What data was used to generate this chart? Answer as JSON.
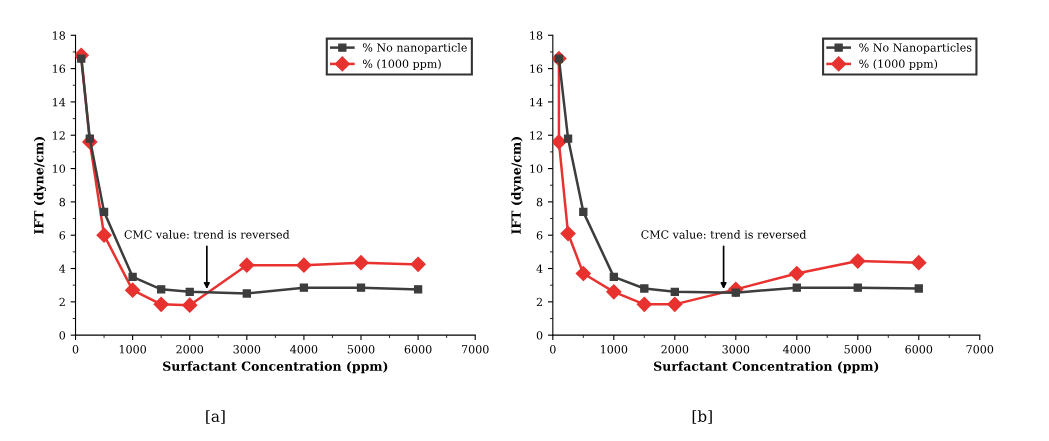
{
  "chart_data": [
    {
      "type": "line",
      "xlabel": "Surfactant Concentration (ppm)",
      "ylabel": "IFT (dyne/cm)",
      "xlim": [
        0,
        7000
      ],
      "xticks": [
        0,
        1000,
        2000,
        3000,
        4000,
        5000,
        6000,
        7000
      ],
      "ylim": [
        0,
        18
      ],
      "yticks": [
        0,
        2,
        4,
        6,
        8,
        10,
        12,
        14,
        16,
        18
      ],
      "legend": "top right",
      "series": [
        {
          "name": "% No nanoparticle",
          "color": "#3d3d3d",
          "marker": "square",
          "x": [
            100,
            250,
            500,
            1000,
            1500,
            2000,
            3000,
            4000,
            5000,
            6000
          ],
          "values": [
            16.6,
            11.8,
            7.4,
            3.5,
            2.75,
            2.6,
            2.5,
            2.85,
            2.85,
            2.75
          ]
        },
        {
          "name": "% (1000 ppm)",
          "color": "#e8322f",
          "marker": "diamond",
          "x": [
            100,
            250,
            500,
            1000,
            1500,
            2000,
            3000,
            4000,
            5000,
            6000
          ],
          "values": [
            16.8,
            11.6,
            6.0,
            2.7,
            1.85,
            1.8,
            4.2,
            4.2,
            4.35,
            4.25
          ]
        }
      ],
      "annotations": [
        {
          "text": "CMC value: trend is reversed",
          "x": 2300,
          "y": 2.6
        },
        "[a]"
      ]
    },
    {
      "type": "line",
      "xlabel": "Surfactant Concentration (ppm)",
      "ylabel": "IFT (dyne/cm)",
      "xlim": [
        0,
        7000
      ],
      "xticks": [
        0,
        1000,
        2000,
        3000,
        4000,
        5000,
        6000,
        7000
      ],
      "ylim": [
        0,
        18
      ],
      "yticks": [
        0,
        2,
        4,
        6,
        8,
        10,
        12,
        14,
        16,
        18
      ],
      "legend": "top right",
      "series": [
        {
          "name": "% No Nanoparticles",
          "color": "#3d3d3d",
          "marker": "square",
          "x": [
            100,
            250,
            500,
            1000,
            1500,
            2000,
            3000,
            4000,
            5000,
            6000
          ],
          "values": [
            16.6,
            11.8,
            7.4,
            3.5,
            2.8,
            2.6,
            2.55,
            2.85,
            2.85,
            2.8
          ]
        },
        {
          "name": "% (1000 ppm)",
          "color": "#e8322f",
          "marker": "diamond",
          "x": [
            100,
            100,
            250,
            500,
            1000,
            1500,
            2000,
            3000,
            4000,
            5000,
            6000
          ],
          "values": [
            16.6,
            11.6,
            6.1,
            3.7,
            2.6,
            1.85,
            1.85,
            2.75,
            3.7,
            4.45,
            4.35
          ]
        }
      ],
      "annotations": [
        {
          "text": "CMC value: trend is reversed",
          "x": 2800,
          "y": 2.6
        },
        "[b]"
      ]
    }
  ]
}
